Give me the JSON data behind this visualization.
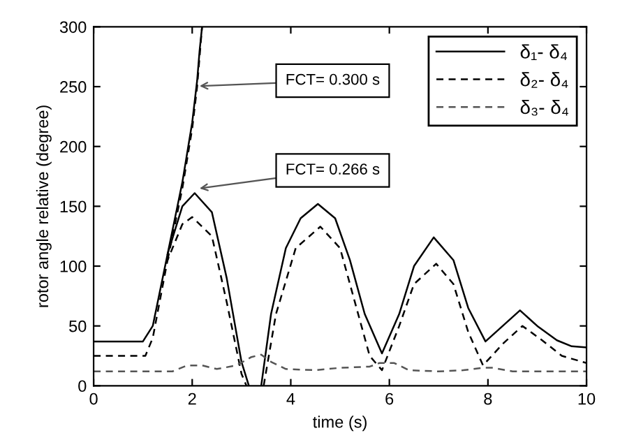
{
  "chart_data": {
    "type": "line",
    "xlabel": "time (s)",
    "ylabel": "rotor angle relative (degree)",
    "xlim": [
      0,
      10
    ],
    "ylim": [
      0,
      300
    ],
    "xticks": [
      0,
      2,
      4,
      6,
      8,
      10
    ],
    "yticks": [
      0,
      50,
      100,
      150,
      200,
      250,
      300
    ],
    "grid": false,
    "legend": "top right",
    "annotations": [
      "FCT= 0.300 s",
      {
        "text": "FCT= 0.266 s",
        "x": 2.15,
        "y": 165
      }
    ],
    "series": [
      {
        "name": "δ₁- δ₄",
        "color": "#000000",
        "line_style": "solid",
        "x": [
          0,
          1.0,
          1.2,
          1.5,
          1.8,
          2.05,
          2.4,
          2.7,
          3.0,
          3.15,
          3.25,
          3.4,
          3.6,
          3.9,
          4.2,
          4.55,
          4.9,
          5.2,
          5.5,
          5.85,
          6.2,
          6.5,
          6.9,
          7.3,
          7.6,
          7.95,
          8.3,
          8.65,
          9.0,
          9.4,
          9.7,
          10
        ],
        "values": [
          37,
          37,
          50,
          110,
          150,
          161,
          145,
          90,
          20,
          0,
          null,
          0,
          60,
          115,
          140,
          152,
          140,
          105,
          60,
          27,
          60,
          100,
          124,
          105,
          65,
          37,
          50,
          63,
          50,
          38,
          33,
          32
        ]
      },
      {
        "name": "δ₂- δ₄",
        "color": "#000000",
        "line_style": "dashed",
        "x": [
          0,
          1.05,
          1.2,
          1.5,
          1.8,
          2.0,
          2.4,
          2.7,
          3.0,
          3.1,
          3.3,
          3.45,
          3.7,
          4.1,
          4.6,
          5.0,
          5.3,
          5.6,
          5.85,
          6.2,
          6.5,
          6.95,
          7.3,
          7.6,
          7.9,
          8.3,
          8.7,
          9.1,
          9.5,
          10
        ],
        "values": [
          25,
          25,
          40,
          105,
          135,
          141,
          125,
          70,
          10,
          0,
          null,
          0,
          60,
          115,
          133,
          115,
          70,
          25,
          13,
          50,
          85,
          102,
          85,
          45,
          17,
          35,
          50,
          38,
          25,
          19
        ]
      },
      {
        "name": "δ₃- δ₄",
        "color": "#555555",
        "line_style": "dashed",
        "x": [
          0,
          1.6,
          1.9,
          2.2,
          2.5,
          2.9,
          3.2,
          3.4,
          3.6,
          3.9,
          4.5,
          5.0,
          5.6,
          5.8,
          6.1,
          6.4,
          7.0,
          7.5,
          7.9,
          8.1,
          8.5,
          10
        ],
        "values": [
          12,
          12,
          17,
          17,
          14,
          17,
          24,
          26,
          20,
          14,
          13,
          15,
          16,
          19,
          19,
          13,
          12,
          13,
          15,
          15,
          12,
          12
        ]
      },
      {
        "color": "#000000",
        "line_style": "solid",
        "x": [
          1.5,
          1.8,
          2.0,
          2.1,
          2.15,
          2.2
        ],
        "values": [
          110,
          170,
          220,
          255,
          280,
          300
        ]
      },
      {
        "color": "#000000",
        "line_style": "dashed",
        "x": [
          1.5,
          1.8,
          2.0,
          2.1,
          2.2
        ],
        "values": [
          105,
          165,
          215,
          250,
          300
        ]
      }
    ]
  }
}
